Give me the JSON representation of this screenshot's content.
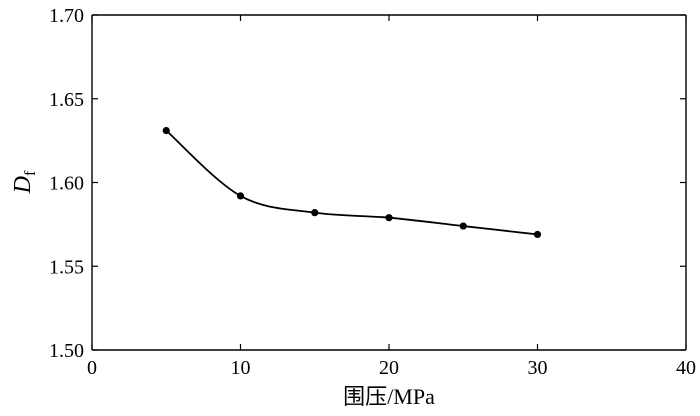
{
  "chart_data": {
    "type": "line",
    "title": "",
    "xlabel": "围压/MPa",
    "ylabel_main": "D",
    "ylabel_sub": "f",
    "xlim": [
      0,
      40
    ],
    "ylim": [
      1.5,
      1.7
    ],
    "x_ticks": [
      0,
      10,
      20,
      30,
      40
    ],
    "y_ticks": [
      1.5,
      1.55,
      1.6,
      1.65,
      1.7
    ],
    "x_tick_labels": [
      "0",
      "10",
      "20",
      "30",
      "40"
    ],
    "y_tick_labels": [
      "1.50",
      "1.55",
      "1.60",
      "1.65",
      "1.70"
    ],
    "grid": false,
    "series": [
      {
        "x": [
          5,
          10,
          15,
          20,
          25,
          30
        ],
        "y": [
          1.631,
          1.592,
          1.582,
          1.579,
          1.574,
          1.569
        ]
      }
    ],
    "colors": {
      "line": "#000000",
      "marker": "#000000"
    }
  }
}
